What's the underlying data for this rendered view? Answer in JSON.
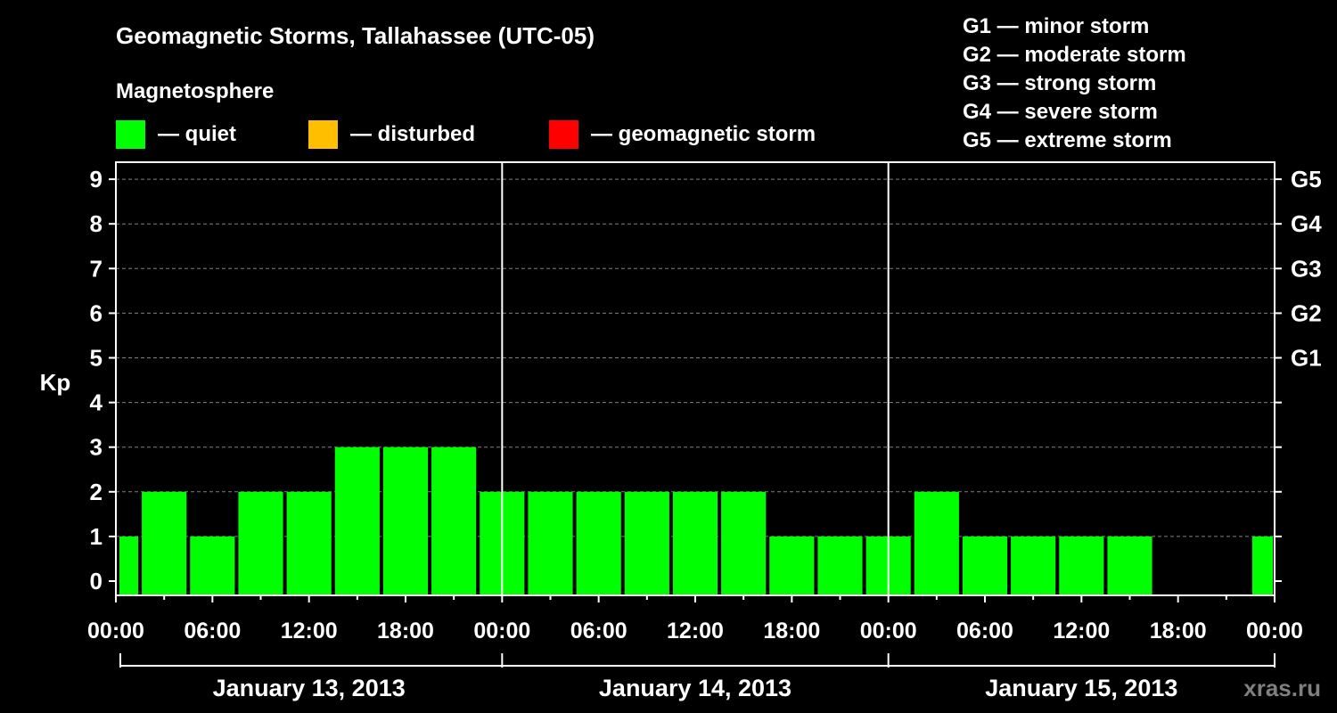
{
  "chart_data": {
    "type": "bar",
    "title": "Geomagnetic Storms, Tallahassee (UTC-05)",
    "ylabel": "Kp",
    "ylim": [
      0,
      9
    ],
    "yticks": [
      "0",
      "1",
      "2",
      "3",
      "4",
      "5",
      "6",
      "7",
      "8",
      "9"
    ],
    "right_axis_labels": [
      {
        "label": "G1",
        "kp": 5
      },
      {
        "label": "G2",
        "kp": 6
      },
      {
        "label": "G3",
        "kp": 7
      },
      {
        "label": "G4",
        "kp": 8
      },
      {
        "label": "G5",
        "kp": 9
      }
    ],
    "x_tick_labels": [
      "00:00",
      "06:00",
      "12:00",
      "18:00",
      "00:00",
      "06:00",
      "12:00",
      "18:00",
      "00:00",
      "06:00",
      "12:00",
      "18:00",
      "00:00"
    ],
    "days": [
      "January 13, 2013",
      "January 14, 2013",
      "January 15, 2013"
    ],
    "interval_hours": 3,
    "values": [
      1,
      2,
      1,
      2,
      2,
      3,
      3,
      3,
      2,
      2,
      2,
      2,
      2,
      2,
      1,
      1,
      1,
      2,
      1,
      1,
      1,
      1,
      null,
      null,
      1
    ],
    "legend_title": "Magnetosphere",
    "legend": [
      {
        "label": "— quiet",
        "color": "#00ff00"
      },
      {
        "label": "— disturbed",
        "color": "#ffbf00"
      },
      {
        "label": "— geomagnetic storm",
        "color": "#ff0000"
      }
    ],
    "storm_scale": [
      "G1 — minor storm",
      "G2 — moderate storm",
      "G3 — strong storm",
      "G4 — severe storm",
      "G5 — extreme storm"
    ]
  },
  "watermark": "xras.ru"
}
